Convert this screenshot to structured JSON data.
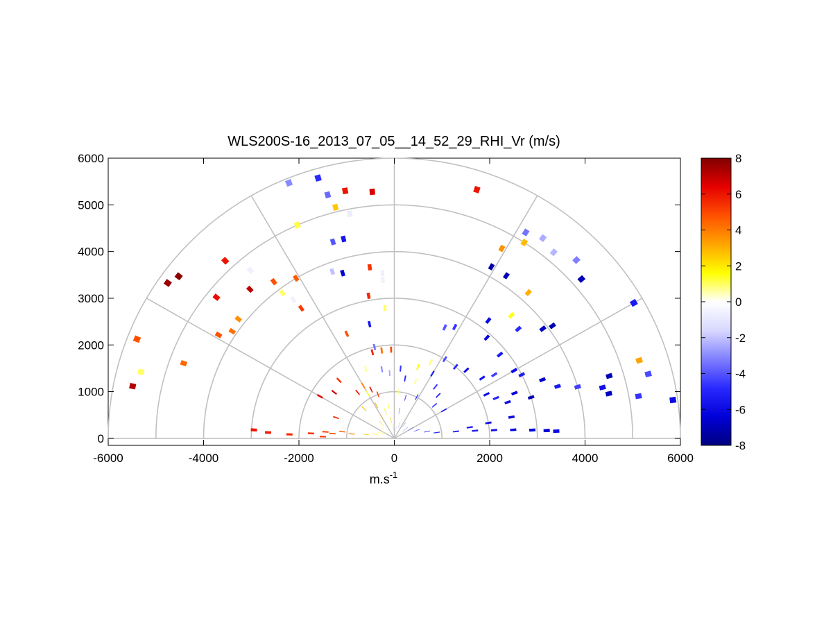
{
  "chart_data": {
    "type": "heatmap",
    "subtype": "polar RHI scan (quantity shown as color in range/height plane)",
    "title": "WLS200S-16_2013_07_05__14_52_29_RHI_Vr (m/s)",
    "xlabel_base": "m.s",
    "xlabel_sup": "-1",
    "ylabel": "",
    "xlim": [
      -6000,
      6000
    ],
    "ylim": [
      0,
      6000
    ],
    "x_ticks": [
      "-6000",
      "-4000",
      "-2000",
      "0",
      "2000",
      "4000",
      "6000"
    ],
    "y_ticks": [
      "0",
      "1000",
      "2000",
      "3000",
      "4000",
      "5000",
      "6000"
    ],
    "polar_grid": {
      "range_rings": [
        1000,
        2000,
        3000,
        4000,
        5000,
        6000
      ],
      "spoke_angles_deg": [
        0,
        30,
        60,
        90,
        120,
        150,
        180
      ]
    },
    "colorbar": {
      "range": [
        -8,
        8
      ],
      "ticks": [
        "8",
        "6",
        "4",
        "2",
        "0",
        "-2",
        "-4",
        "-6",
        "-8"
      ],
      "colormap": [
        "#00007f",
        "#0000d8",
        "#2a2aff",
        "#7f7fff",
        "#d8d8ff",
        "#ffffff",
        "#ffff00",
        "#ffa500",
        "#ff5000",
        "#e60000",
        "#800000"
      ]
    },
    "cells": [
      {
        "az": 178.6,
        "r": 1500,
        "v": 5.2
      },
      {
        "az": 177.8,
        "r": 2200,
        "v": 5.6
      },
      {
        "az": 177.3,
        "r": 2650,
        "v": 5.8
      },
      {
        "az": 176.5,
        "r": 2950,
        "v": 6.0
      },
      {
        "az": 175.5,
        "r": 1300,
        "v": 4.6
      },
      {
        "az": 174.0,
        "r": 900,
        "v": 3.6
      },
      {
        "az": 172.0,
        "r": 600,
        "v": 2.6
      },
      {
        "az": 168.0,
        "r": 400,
        "v": 2.0
      },
      {
        "az": 160.0,
        "r": 300,
        "v": 1.6
      },
      {
        "az": 150.0,
        "r": 250,
        "v": 1.2
      },
      {
        "az": 140.0,
        "r": 350,
        "v": 1.0
      },
      {
        "az": 130.0,
        "r": 420,
        "v": 2.2
      },
      {
        "az": 120.0,
        "r": 520,
        "v": 3.0
      },
      {
        "az": 108.0,
        "r": 600,
        "v": 1.8
      },
      {
        "az": 100.0,
        "r": 400,
        "v": 2.4
      },
      {
        "az": 95.0,
        "r": 250,
        "v": 2.0
      },
      {
        "az": 88.0,
        "r": 300,
        "v": -1.4
      },
      {
        "az": 80.0,
        "r": 200,
        "v": -1.6
      },
      {
        "az": 70.0,
        "r": 300,
        "v": -2.6
      },
      {
        "az": 55.0,
        "r": 350,
        "v": -3.2
      },
      {
        "az": 40.0,
        "r": 300,
        "v": -3.6
      },
      {
        "az": 30.0,
        "r": 400,
        "v": -4.0
      },
      {
        "az": 20.0,
        "r": 500,
        "v": -4.2
      },
      {
        "az": 12.0,
        "r": 700,
        "v": -4.5
      },
      {
        "az": 8.0,
        "r": 900,
        "v": -5.0
      },
      {
        "az": 6.5,
        "r": 1300,
        "v": -5.2
      },
      {
        "az": 5.5,
        "r": 1700,
        "v": -5.4
      },
      {
        "az": 4.8,
        "r": 2100,
        "v": -5.7
      },
      {
        "az": 4.2,
        "r": 2500,
        "v": -6.0
      },
      {
        "az": 3.5,
        "r": 2900,
        "v": -6.2
      },
      {
        "az": 3.0,
        "r": 3200,
        "v": -6.5
      },
      {
        "az": 2.6,
        "r": 3400,
        "v": -6.0
      },
      {
        "az": 176.5,
        "r": 1750,
        "v": 5.4
      },
      {
        "az": 174.5,
        "r": 1450,
        "v": 5.0
      },
      {
        "az": 172.5,
        "r": 1100,
        "v": 4.4
      },
      {
        "az": 8.5,
        "r": 1600,
        "v": -5.6
      },
      {
        "az": 9.5,
        "r": 2000,
        "v": -5.8
      },
      {
        "az": 10.5,
        "r": 2500,
        "v": -6.0
      },
      {
        "az": 168.5,
        "r": 5600,
        "v": 7.2
      },
      {
        "az": 165.0,
        "r": 5500,
        "v": 1.0
      },
      {
        "az": 158.5,
        "r": 5800,
        "v": 4.8
      },
      {
        "az": 160.0,
        "r": 4700,
        "v": 4.4
      },
      {
        "az": 145.0,
        "r": 5800,
        "v": 7.6
      },
      {
        "az": 142.5,
        "r": 5700,
        "v": 7.8
      },
      {
        "az": 141.0,
        "r": 4800,
        "v": 6.2
      },
      {
        "az": 149.0,
        "r": 4300,
        "v": 4.8
      },
      {
        "az": 146.0,
        "r": 4100,
        "v": 4.2
      },
      {
        "az": 142.0,
        "r": 4150,
        "v": 3.6
      },
      {
        "az": 133.0,
        "r": 5200,
        "v": 6.0
      },
      {
        "az": 133.5,
        "r": 4400,
        "v": 7.0
      },
      {
        "az": 130.0,
        "r": 4700,
        "v": -0.6
      },
      {
        "az": 127.0,
        "r": 4200,
        "v": 4.8
      },
      {
        "az": 121.0,
        "r": 4000,
        "v": 4.6
      },
      {
        "az": 127.0,
        "r": 3900,
        "v": 1.0
      },
      {
        "az": 125.5,
        "r": 3650,
        "v": -0.6
      },
      {
        "az": 125.0,
        "r": 3400,
        "v": 5.2
      },
      {
        "az": 112.0,
        "r": 5900,
        "v": -3.0
      },
      {
        "az": 106.0,
        "r": 5800,
        "v": -4.8
      },
      {
        "az": 105.0,
        "r": 5400,
        "v": -3.6
      },
      {
        "az": 104.0,
        "r": 5100,
        "v": 2.6
      },
      {
        "az": 101.0,
        "r": 5400,
        "v": 6.0
      },
      {
        "az": 95.0,
        "r": 5300,
        "v": 6.6
      },
      {
        "az": 114.0,
        "r": 5000,
        "v": 1.2
      },
      {
        "az": 101.0,
        "r": 4900,
        "v": -0.8
      },
      {
        "az": 107.0,
        "r": 4400,
        "v": -4.0
      },
      {
        "az": 104.0,
        "r": 4400,
        "v": -5.6
      },
      {
        "az": 110.0,
        "r": 3800,
        "v": -2.0
      },
      {
        "az": 107.0,
        "r": 3700,
        "v": -6.6
      },
      {
        "az": 98.0,
        "r": 3700,
        "v": 5.4
      },
      {
        "az": 94.0,
        "r": 3550,
        "v": -0.6
      },
      {
        "az": 94.0,
        "r": 3400,
        "v": -0.6
      },
      {
        "az": 94.0,
        "r": 2800,
        "v": 1.0
      },
      {
        "az": 100.0,
        "r": 3100,
        "v": 5.6
      },
      {
        "az": 114.0,
        "r": 2450,
        "v": 4.8
      },
      {
        "az": 102.0,
        "r": 2500,
        "v": -5.6
      },
      {
        "az": 72.0,
        "r": 5600,
        "v": 6.0
      },
      {
        "az": 58.0,
        "r": 5200,
        "v": -3.4
      },
      {
        "az": 54.0,
        "r": 5300,
        "v": -2.4
      },
      {
        "az": 50.0,
        "r": 5200,
        "v": -2.2
      },
      {
        "az": 45.0,
        "r": 5400,
        "v": -3.2
      },
      {
        "az": 41.0,
        "r": 5200,
        "v": -7.0
      },
      {
        "az": 57.0,
        "r": 5000,
        "v": 2.8
      },
      {
        "az": 61.0,
        "r": 4650,
        "v": 3.6
      },
      {
        "az": 61.0,
        "r": 4200,
        "v": -7.2
      },
      {
        "az": 56.0,
        "r": 4200,
        "v": -7.0
      },
      {
        "az": 48.0,
        "r": 4200,
        "v": 3.0
      },
      {
        "az": 36.0,
        "r": 4100,
        "v": -7.2
      },
      {
        "az": 37.0,
        "r": 3900,
        "v": -6.8
      },
      {
        "az": 30.0,
        "r": 5800,
        "v": -5.4
      },
      {
        "az": 18.0,
        "r": 5400,
        "v": 3.2
      },
      {
        "az": 47.0,
        "r": 3600,
        "v": 1.4
      },
      {
        "az": 52.0,
        "r": 3200,
        "v": -6.0
      },
      {
        "az": 42.0,
        "r": 3500,
        "v": -4.8
      },
      {
        "az": 48.0,
        "r": 2900,
        "v": -6.2
      },
      {
        "az": 39.0,
        "r": 2850,
        "v": -5.4
      },
      {
        "az": 30.0,
        "r": 2900,
        "v": -6.0
      },
      {
        "az": 27.0,
        "r": 3000,
        "v": -5.2
      },
      {
        "az": 33.0,
        "r": 2500,
        "v": -4.4
      },
      {
        "az": 22.0,
        "r": 3350,
        "v": -6.6
      },
      {
        "az": 17.0,
        "r": 3000,
        "v": -7.0
      },
      {
        "az": 18.0,
        "r": 3600,
        "v": -5.4
      },
      {
        "az": 16.0,
        "r": 4000,
        "v": -4.4
      },
      {
        "az": 16.5,
        "r": 4700,
        "v": -7.0
      },
      {
        "az": 14.0,
        "r": 4500,
        "v": -5.8
      },
      {
        "az": 12.0,
        "r": 4600,
        "v": -6.8
      },
      {
        "az": 14.5,
        "r": 5500,
        "v": -4.2
      },
      {
        "az": 10.0,
        "r": 5200,
        "v": -4.6
      },
      {
        "az": 8.0,
        "r": 5900,
        "v": -6.0
      },
      {
        "az": 62.0,
        "r": 2700,
        "v": -4.6
      },
      {
        "az": 66.0,
        "r": 2600,
        "v": -4.0
      },
      {
        "az": 58.0,
        "r": 2000,
        "v": -4.2
      },
      {
        "az": 50.0,
        "r": 2000,
        "v": -4.8
      },
      {
        "az": 44.0,
        "r": 2100,
        "v": -6.0
      },
      {
        "az": 35.0,
        "r": 2250,
        "v": -5.6
      },
      {
        "az": 26.0,
        "r": 2150,
        "v": -6.2
      },
      {
        "az": 21.0,
        "r": 2700,
        "v": -6.4
      },
      {
        "az": 22.0,
        "r": 2300,
        "v": -5.0
      },
      {
        "az": 18.0,
        "r": 2500,
        "v": -5.8
      },
      {
        "az": 160.0,
        "r": 1300,
        "v": 5.6
      },
      {
        "az": 150.0,
        "r": 1800,
        "v": 6.2
      },
      {
        "az": 142.0,
        "r": 1600,
        "v": 6.8
      },
      {
        "az": 133.0,
        "r": 1700,
        "v": 5.4
      },
      {
        "az": 128.0,
        "r": 1250,
        "v": 5.8
      },
      {
        "az": 120.0,
        "r": 1300,
        "v": 4.0
      },
      {
        "az": 120.0,
        "r": 1100,
        "v": 1.4
      },
      {
        "az": 115.0,
        "r": 1150,
        "v": 6.0
      },
      {
        "az": 110.0,
        "r": 1000,
        "v": 5.2
      },
      {
        "az": 104.0,
        "r": 1900,
        "v": 5.6
      },
      {
        "az": 98.0,
        "r": 1900,
        "v": 4.2
      },
      {
        "az": 92.0,
        "r": 1900,
        "v": 5.0
      },
      {
        "az": 100.0,
        "r": 1500,
        "v": -3.0
      },
      {
        "az": 94.0,
        "r": 1400,
        "v": -2.4
      },
      {
        "az": 85.0,
        "r": 1500,
        "v": -4.6
      },
      {
        "az": 80.0,
        "r": 1300,
        "v": -4.8
      },
      {
        "az": 72.0,
        "r": 1600,
        "v": 1.6
      },
      {
        "az": 65.0,
        "r": 1800,
        "v": 0.8
      },
      {
        "az": 60.0,
        "r": 1600,
        "v": -5.2
      },
      {
        "az": 52.0,
        "r": 1400,
        "v": -4.6
      },
      {
        "az": 45.0,
        "r": 1300,
        "v": -5.0
      },
      {
        "az": 40.0,
        "r": 1100,
        "v": -4.6
      },
      {
        "az": 30.0,
        "r": 1200,
        "v": -5.4
      },
      {
        "az": 75.0,
        "r": 900,
        "v": -3.8
      },
      {
        "az": 62.0,
        "r": 1000,
        "v": -4.4
      },
      {
        "az": 118.0,
        "r": 800,
        "v": 3.0
      },
      {
        "az": 135.0,
        "r": 900,
        "v": 2.6
      },
      {
        "az": 100.0,
        "r": 700,
        "v": 1.0
      },
      {
        "az": 80.0,
        "r": 600,
        "v": -3.0
      },
      {
        "az": 85.0,
        "r": 1000,
        "v": 0.6
      },
      {
        "az": 70.0,
        "r": 1300,
        "v": 0.8
      },
      {
        "az": 112.0,
        "r": 1600,
        "v": 0.6
      },
      {
        "az": 102.0,
        "r": 2000,
        "v": -3.4
      }
    ]
  }
}
